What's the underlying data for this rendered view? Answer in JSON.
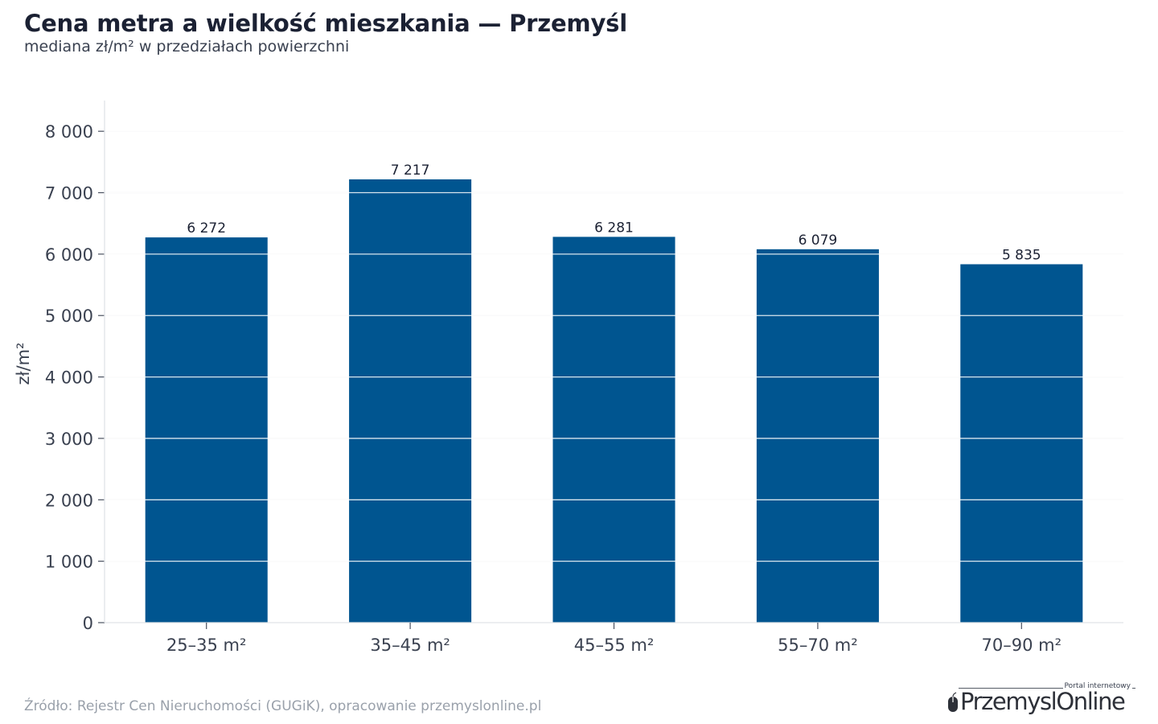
{
  "header": {
    "title": "Cena metra a wielkość mieszkania — Przemyśl",
    "subtitle": "mediana zł/m² w przedziałach powierzchni"
  },
  "chart_data": {
    "type": "bar",
    "title": "Cena metra a wielkość mieszkania — Przemyśl",
    "subtitle": "mediana zł/m² w przedziałach powierzchni",
    "categories": [
      "25–35 m²",
      "35–45 m²",
      "45–55 m²",
      "55–70 m²",
      "70–90 m²"
    ],
    "values": [
      6272,
      7217,
      6281,
      6079,
      5835
    ],
    "value_labels": [
      "6 272",
      "7 217",
      "6 281",
      "6 079",
      "5 835"
    ],
    "xlabel": "",
    "ylabel": "zł/m²",
    "ylim": [
      0,
      8500
    ],
    "yticks": [
      0,
      1000,
      2000,
      3000,
      4000,
      5000,
      6000,
      7000,
      8000
    ],
    "ytick_labels": [
      "0",
      "1 000",
      "2 000",
      "3 000",
      "4 000",
      "5 000",
      "6 000",
      "7 000",
      "8 000"
    ],
    "grid": true,
    "legend": "none",
    "bar_color": "#005590"
  },
  "footer": {
    "source": "Źródło: Rejestr Cen Nieruchomości (GUGiK), opracowanie przemyslonline.pl"
  },
  "logo": {
    "tagline": "Portal internetowy",
    "name_part1": "Przemysl",
    "name_part2": "Online",
    "icon": "mouse-icon"
  },
  "colors": {
    "bar": "#005590",
    "grid": "#e6e8eb",
    "title": "#1b2133",
    "axis_text": "#3a4150",
    "source_text": "#9aa1ab"
  }
}
